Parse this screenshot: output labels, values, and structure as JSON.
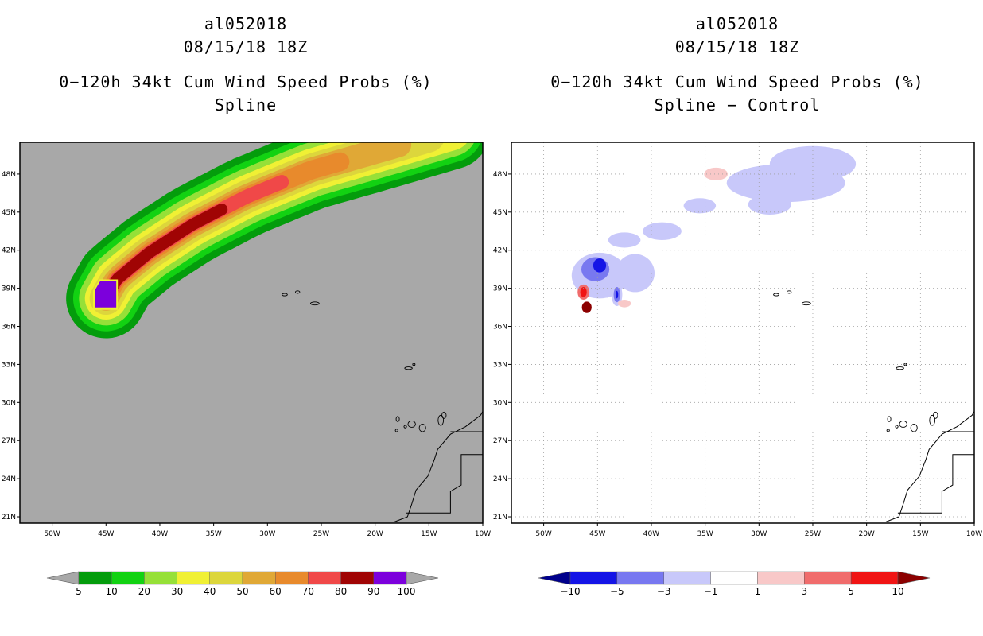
{
  "left": {
    "title1": "al052018",
    "title2": "08/15/18 18Z",
    "title3": "0−120h 34kt Cum Wind Speed Probs (%)",
    "title4": "Spline"
  },
  "right": {
    "title1": "al052018",
    "title2": "08/15/18 18Z",
    "title3": "0−120h 34kt Cum Wind Speed Probs (%)",
    "title4": "Spline − Control"
  },
  "chart_data": [
    {
      "type": "heatmap",
      "name": "Spline cumulative 34kt wind speed probability",
      "units": "%",
      "xlim": [
        -53,
        -10
      ],
      "ylim": [
        20.5,
        50.5
      ],
      "x_ticks": [
        -50,
        -45,
        -40,
        -35,
        -30,
        -25,
        -20,
        -15,
        -10
      ],
      "x_tick_labels": [
        "50W",
        "45W",
        "40W",
        "35W",
        "30W",
        "25W",
        "20W",
        "15W",
        "10W"
      ],
      "y_ticks": [
        21,
        24,
        27,
        30,
        33,
        36,
        39,
        42,
        45,
        48
      ],
      "y_tick_labels": [
        "21N",
        "24N",
        "27N",
        "30N",
        "33N",
        "36N",
        "39N",
        "42N",
        "45N",
        "48N"
      ],
      "grid": false,
      "background_color": "#a8a8a8",
      "track": [
        [
          -45,
          38.2
        ],
        [
          -44,
          39.7
        ],
        [
          -41,
          41.8
        ],
        [
          -37,
          44.0
        ],
        [
          -32,
          46.2
        ],
        [
          -26,
          48.3
        ],
        [
          -19,
          50.0
        ],
        [
          -13,
          51.5
        ]
      ],
      "levels": [
        {
          "min": 5,
          "color": "#049c0c",
          "width_deg": 3.4,
          "lag": 0.0
        },
        {
          "min": 10,
          "color": "#12d212",
          "width_deg": 2.8,
          "lag": 0.0
        },
        {
          "min": 20,
          "color": "#96e038",
          "width_deg": 2.3,
          "lag": 0.0
        },
        {
          "min": 30,
          "color": "#f0f034",
          "width_deg": 1.8,
          "lag": 0.0
        },
        {
          "min": 40,
          "color": "#dcd63c",
          "width_deg": 1.4,
          "lag": 0.06
        },
        {
          "min": 50,
          "color": "#e0a836",
          "width_deg": 1.05,
          "lag": 0.14
        },
        {
          "min": 60,
          "color": "#e88a2c",
          "width_deg": 0.8,
          "lag": 0.3
        },
        {
          "min": 70,
          "color": "#f04848",
          "width_deg": 0.6,
          "lag": 0.46
        },
        {
          "min": 80,
          "color": "#a00404",
          "width_deg": 0.5,
          "lag": 0.63
        },
        {
          "min": 90,
          "color": "#7c00dc",
          "width_deg": 0.0,
          "lag": 0.8
        }
      ],
      "max_region": {
        "value": 100,
        "color": "#7c00dc",
        "lon_range": [
          -46.2,
          -43.9
        ],
        "lat_range": [
          37.3,
          39.7
        ]
      },
      "colorbar": {
        "labels": [
          "5",
          "10",
          "20",
          "30",
          "40",
          "50",
          "60",
          "70",
          "80",
          "90",
          "100"
        ],
        "colors": [
          "#049c0c",
          "#12d212",
          "#96e038",
          "#f0f034",
          "#dcd63c",
          "#e0a836",
          "#e88a2c",
          "#f04848",
          "#a00404",
          "#7c00dc"
        ],
        "under_color": "#a8a8a8",
        "over_color": "#a8a8a8"
      }
    },
    {
      "type": "heatmap",
      "name": "Spline minus Control difference",
      "units": "%",
      "xlim": [
        -53,
        -10
      ],
      "ylim": [
        20.5,
        50.5
      ],
      "x_ticks": [
        -50,
        -45,
        -40,
        -35,
        -30,
        -25,
        -20,
        -15,
        -10
      ],
      "x_tick_labels": [
        "50W",
        "45W",
        "40W",
        "35W",
        "30W",
        "25W",
        "20W",
        "15W",
        "10W"
      ],
      "y_ticks": [
        21,
        24,
        27,
        30,
        33,
        36,
        39,
        42,
        45,
        48
      ],
      "y_tick_labels": [
        "21N",
        "24N",
        "27N",
        "30N",
        "33N",
        "36N",
        "39N",
        "42N",
        "45N",
        "48N"
      ],
      "grid": true,
      "background_color": "#ffffff",
      "features": [
        {
          "kind": "ellipse",
          "value_range": [
            -3,
            -1
          ],
          "color": "#c8c8fa",
          "lon": -44.8,
          "lat": 40.0,
          "rx": 2.6,
          "ry": 1.8
        },
        {
          "kind": "ellipse",
          "value_range": [
            -5,
            -3
          ],
          "color": "#7878f0",
          "lon": -45.2,
          "lat": 40.5,
          "rx": 1.3,
          "ry": 0.95
        },
        {
          "kind": "ellipse",
          "value_range": [
            -10,
            -5
          ],
          "color": "#1414e6",
          "lon": -44.8,
          "lat": 40.8,
          "rx": 0.6,
          "ry": 0.55
        },
        {
          "kind": "ellipse",
          "value_range": [
            -3,
            -1
          ],
          "color": "#c8c8fa",
          "lon": -41.5,
          "lat": 40.2,
          "rx": 1.8,
          "ry": 1.5
        },
        {
          "kind": "ellipse",
          "value_range": [
            -3,
            -1
          ],
          "color": "#c8c8fa",
          "lon": -43.2,
          "lat": 38.5,
          "rx": 0.5,
          "ry": 0.9
        },
        {
          "kind": "ellipse",
          "value_range": [
            -5,
            -3
          ],
          "color": "#7878f0",
          "lon": -43.2,
          "lat": 38.5,
          "rx": 0.3,
          "ry": 0.6
        },
        {
          "kind": "ellipse",
          "value_range": [
            -10,
            -5
          ],
          "color": "#1414e6",
          "lon": -43.2,
          "lat": 38.5,
          "rx": 0.12,
          "ry": 0.3
        },
        {
          "kind": "ellipse",
          "value_range": [
            1,
            3
          ],
          "color": "#f8c8c8",
          "lon": -42.5,
          "lat": 37.8,
          "rx": 0.6,
          "ry": 0.3
        },
        {
          "kind": "ellipse",
          "value_range": [
            3,
            5
          ],
          "color": "#f06c6c",
          "lon": -46.3,
          "lat": 38.7,
          "rx": 0.55,
          "ry": 0.6
        },
        {
          "kind": "ellipse",
          "value_range": [
            5,
            10
          ],
          "color": "#f01414",
          "lon": -46.3,
          "lat": 38.7,
          "rx": 0.3,
          "ry": 0.4
        },
        {
          "kind": "ellipse",
          "value_range": [
            10,
            100
          ],
          "color": "#8c0000",
          "lon": -46.0,
          "lat": 37.5,
          "rx": 0.45,
          "ry": 0.45
        },
        {
          "kind": "ellipse",
          "value_range": [
            -3,
            -1
          ],
          "color": "#c8c8fa",
          "lon": -39.0,
          "lat": 43.5,
          "rx": 1.8,
          "ry": 0.7
        },
        {
          "kind": "ellipse",
          "value_range": [
            -3,
            -1
          ],
          "color": "#c8c8fa",
          "lon": -42.5,
          "lat": 42.8,
          "rx": 1.5,
          "ry": 0.6
        },
        {
          "kind": "ellipse",
          "value_range": [
            -3,
            -1
          ],
          "color": "#c8c8fa",
          "lon": -35.5,
          "lat": 45.5,
          "rx": 1.5,
          "ry": 0.6
        },
        {
          "kind": "ellipse",
          "value_range": [
            -3,
            -1
          ],
          "color": "#c8c8fa",
          "lon": -27.5,
          "lat": 47.3,
          "rx": 5.5,
          "ry": 1.5
        },
        {
          "kind": "ellipse",
          "value_range": [
            -3,
            -1
          ],
          "color": "#c8c8fa",
          "lon": -25.0,
          "lat": 48.8,
          "rx": 4.0,
          "ry": 1.4
        },
        {
          "kind": "ellipse",
          "value_range": [
            -3,
            -1
          ],
          "color": "#c8c8fa",
          "lon": -29.0,
          "lat": 45.6,
          "rx": 2.0,
          "ry": 0.8
        },
        {
          "kind": "ellipse",
          "value_range": [
            1,
            3
          ],
          "color": "#f8c8c8",
          "lon": -34.0,
          "lat": 48.0,
          "rx": 1.1,
          "ry": 0.5
        }
      ],
      "colorbar": {
        "labels": [
          "−10",
          "−5",
          "−3",
          "−1",
          "1",
          "3",
          "5",
          "10"
        ],
        "colors": [
          "#1414e6",
          "#7878f0",
          "#c8c8fa",
          "#ffffff",
          "#f8c8c8",
          "#f06c6c",
          "#f01414"
        ],
        "under_color": "#00008c",
        "over_color": "#8c0000"
      }
    }
  ]
}
